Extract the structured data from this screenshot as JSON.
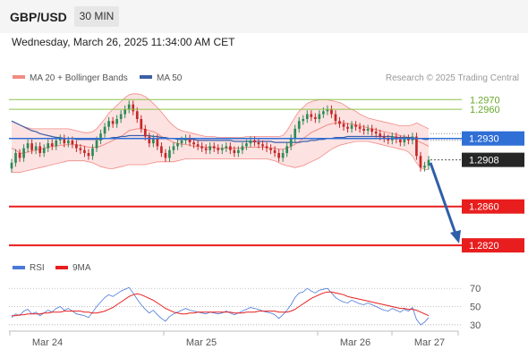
{
  "header": {
    "pair": "GBP/USD",
    "timeframe": "30 MIN",
    "datetime": "Wednesday, March 26, 2025 11:34:00 AM CET"
  },
  "colors": {
    "ma20": "#f28b82",
    "ma50": "#3c5fa8",
    "band_fill": "#fde2e2",
    "bull": "#2e8b57",
    "bear": "#c62828",
    "resistance": "#8bc34a",
    "support": "#e81e1e",
    "pivot": "#2f6fd6",
    "current": "#262626",
    "arrow": "#2f5fa8",
    "rsi": "#4a78d8",
    "rsi_ma": "#e81e1e"
  },
  "chart_data": [
    {
      "type": "line",
      "title": "",
      "legend": [
        {
          "name": "MA 20 + Bollinger Bands",
          "color": "#f28b82"
        },
        {
          "name": "MA 50",
          "color": "#3c5fa8"
        }
      ],
      "legend_position": "top-left",
      "watermark": "Research © 2025 Trading Central",
      "ylim": [
        1.281,
        1.2985
      ],
      "x_ticks": [
        "Mar 24",
        "Mar 25",
        "Mar 26",
        "Mar 27"
      ],
      "price_levels": [
        {
          "value": 1.297,
          "label": "1.2970",
          "kind": "resistance"
        },
        {
          "value": 1.296,
          "label": "1.2960",
          "kind": "resistance"
        },
        {
          "value": 1.293,
          "label": "1.2930",
          "kind": "pivot"
        },
        {
          "value": 1.2908,
          "label": "1.2908",
          "kind": "current"
        },
        {
          "value": 1.286,
          "label": "1.2860",
          "kind": "support"
        },
        {
          "value": 1.282,
          "label": "1.2820",
          "kind": "support"
        }
      ],
      "forecast_arrow": {
        "from": 1.2905,
        "to": 1.2822
      },
      "series": [
        {
          "name": "Close",
          "values": [
            1.2905,
            1.2915,
            1.291,
            1.292,
            1.2925,
            1.2918,
            1.2922,
            1.2915,
            1.292,
            1.2925,
            1.2922,
            1.2928,
            1.293,
            1.2925,
            1.2928,
            1.2924,
            1.292,
            1.2918,
            1.2915,
            1.2912,
            1.292,
            1.2928,
            1.2935,
            1.2942,
            1.2948,
            1.2945,
            1.295,
            1.2955,
            1.296,
            1.2965,
            1.2958,
            1.295,
            1.294,
            1.2932,
            1.2925,
            1.293,
            1.2922,
            1.2915,
            1.291,
            1.2918,
            1.2922,
            1.2925,
            1.2928,
            1.293,
            1.2926,
            1.2924,
            1.2922,
            1.292,
            1.2918,
            1.2922,
            1.292,
            1.2918,
            1.292,
            1.2922,
            1.2918,
            1.2915,
            1.2918,
            1.2922,
            1.2925,
            1.2928,
            1.2926,
            1.2924,
            1.2922,
            1.292,
            1.2918,
            1.2915,
            1.291,
            1.2915,
            1.2922,
            1.293,
            1.294,
            1.2948,
            1.295,
            1.2955,
            1.2952,
            1.295,
            1.2955,
            1.2958,
            1.296,
            1.2955,
            1.2948,
            1.2945,
            1.2942,
            1.294,
            1.2944,
            1.2942,
            1.294,
            1.2938,
            1.294,
            1.2937,
            1.2935,
            1.2932,
            1.293,
            1.2928,
            1.2932,
            1.2929,
            1.2926,
            1.293,
            1.2928,
            1.2932,
            1.2912,
            1.29,
            1.2902,
            1.2908
          ]
        },
        {
          "name": "MA 20",
          "values": [
            1.292,
            1.2918,
            1.2915,
            1.2915,
            1.2916,
            1.2917,
            1.2918,
            1.2919,
            1.292,
            1.2921,
            1.2922,
            1.2922,
            1.2923,
            1.2923,
            1.2924,
            1.2924,
            1.2923,
            1.2923,
            1.2922,
            1.2921,
            1.2921,
            1.2921,
            1.2922,
            1.2924,
            1.2926,
            1.2928,
            1.293,
            1.2932,
            1.2935,
            1.2938,
            1.2939,
            1.294,
            1.294,
            1.2939,
            1.2938,
            1.2937,
            1.2935,
            1.2932,
            1.293,
            1.2928,
            1.2926,
            1.2925,
            1.2924,
            1.2924,
            1.2923,
            1.2922,
            1.2922,
            1.2921,
            1.2921,
            1.2921,
            1.2921,
            1.292,
            1.292,
            1.292,
            1.292,
            1.292,
            1.292,
            1.292,
            1.2921,
            1.2921,
            1.2921,
            1.2921,
            1.2921,
            1.2921,
            1.292,
            1.292,
            1.2919,
            1.2919,
            1.292,
            1.2922,
            1.2924,
            1.2927,
            1.293,
            1.2933,
            1.2936,
            1.2938,
            1.294,
            1.2942,
            1.2944,
            1.2945,
            1.2946,
            1.2946,
            1.2946,
            1.2945,
            1.2945,
            1.2944,
            1.2943,
            1.2942,
            1.2941,
            1.294,
            1.2939,
            1.2938,
            1.2937,
            1.2936,
            1.2935,
            1.2934,
            1.2933,
            1.2932,
            1.2931,
            1.293,
            1.2928,
            1.2926,
            1.2924,
            1.2922
          ]
        },
        {
          "name": "Bollinger Upper",
          "values": [
            1.2948,
            1.2946,
            1.2944,
            1.2942,
            1.2941,
            1.294,
            1.294,
            1.294,
            1.294,
            1.294,
            1.294,
            1.294,
            1.294,
            1.294,
            1.294,
            1.2939,
            1.2938,
            1.2937,
            1.2936,
            1.2936,
            1.2937,
            1.294,
            1.2945,
            1.295,
            1.2956,
            1.296,
            1.2964,
            1.2968,
            1.2972,
            1.2975,
            1.2976,
            1.2976,
            1.2975,
            1.2973,
            1.297,
            1.2966,
            1.2962,
            1.2957,
            1.2952,
            1.2947,
            1.2943,
            1.294,
            1.2938,
            1.2937,
            1.2936,
            1.2935,
            1.2934,
            1.2933,
            1.2932,
            1.2932,
            1.2932,
            1.2931,
            1.2931,
            1.2931,
            1.2931,
            1.2931,
            1.2931,
            1.2931,
            1.2932,
            1.2932,
            1.2932,
            1.2932,
            1.2932,
            1.2932,
            1.2932,
            1.2932,
            1.2932,
            1.2933,
            1.2938,
            1.2945,
            1.2952,
            1.2958,
            1.2962,
            1.2966,
            1.2968,
            1.2969,
            1.297,
            1.297,
            1.297,
            1.2969,
            1.2968,
            1.2967,
            1.2965,
            1.2962,
            1.296,
            1.2958,
            1.2955,
            1.2953,
            1.2951,
            1.295,
            1.2949,
            1.2948,
            1.2947,
            1.2946,
            1.2945,
            1.2944,
            1.2943,
            1.2943,
            1.2943,
            1.2944,
            1.2946,
            1.2944,
            1.2942,
            1.294
          ]
        },
        {
          "name": "Bollinger Lower",
          "values": [
            1.2895,
            1.2895,
            1.2895,
            1.2896,
            1.2897,
            1.2898,
            1.2899,
            1.29,
            1.2901,
            1.2902,
            1.2903,
            1.2904,
            1.2905,
            1.2906,
            1.2907,
            1.2907,
            1.2907,
            1.2907,
            1.2907,
            1.2906,
            1.2905,
            1.2903,
            1.2901,
            1.29,
            1.2899,
            1.2899,
            1.29,
            1.2901,
            1.2902,
            1.2903,
            1.2903,
            1.2903,
            1.2903,
            1.2903,
            1.2904,
            1.2905,
            1.2906,
            1.2906,
            1.2906,
            1.2906,
            1.2906,
            1.2907,
            1.2908,
            1.2909,
            1.2909,
            1.2909,
            1.2909,
            1.2909,
            1.2909,
            1.2909,
            1.2909,
            1.2909,
            1.2909,
            1.2909,
            1.2909,
            1.2909,
            1.2909,
            1.2909,
            1.2909,
            1.2909,
            1.2909,
            1.2909,
            1.2909,
            1.2909,
            1.2908,
            1.2907,
            1.2905,
            1.2903,
            1.2902,
            1.2901,
            1.29,
            1.2901,
            1.2902,
            1.2904,
            1.2906,
            1.2908,
            1.291,
            1.2913,
            1.2916,
            1.2919,
            1.2921,
            1.2923,
            1.2924,
            1.2925,
            1.2926,
            1.2927,
            1.2927,
            1.2927,
            1.2927,
            1.2926,
            1.2925,
            1.2924,
            1.2923,
            1.2922,
            1.2921,
            1.292,
            1.2919,
            1.2918,
            1.2916,
            1.2912,
            1.2905,
            1.29,
            1.2898,
            1.2898
          ]
        },
        {
          "name": "MA 50",
          "values": [
            1.2948,
            1.2946,
            1.2944,
            1.2942,
            1.294,
            1.2938,
            1.2937,
            1.2935,
            1.2934,
            1.2933,
            1.2932,
            1.2931,
            1.2931,
            1.293,
            1.293,
            1.293,
            1.2929,
            1.2929,
            1.2929,
            1.2929,
            1.2929,
            1.2929,
            1.2929,
            1.293,
            1.293,
            1.2931,
            1.2931,
            1.2932,
            1.2932,
            1.2933,
            1.2933,
            1.2933,
            1.2933,
            1.2933,
            1.2933,
            1.2932,
            1.2932,
            1.2931,
            1.2931,
            1.293,
            1.293,
            1.2929,
            1.2929,
            1.2929,
            1.2929,
            1.2929,
            1.2928,
            1.2928,
            1.2928,
            1.2928,
            1.2928,
            1.2928,
            1.2928,
            1.2928,
            1.2928,
            1.2927,
            1.2927,
            1.2927,
            1.2927,
            1.2927,
            1.2927,
            1.2927,
            1.2927,
            1.2927,
            1.2927,
            1.2926,
            1.2926,
            1.2926,
            1.2926,
            1.2926,
            1.2926,
            1.2926,
            1.2927,
            1.2927,
            1.2928,
            1.2928,
            1.2929,
            1.2929,
            1.293,
            1.293,
            1.2931,
            1.2931,
            1.2931,
            1.2932,
            1.2932,
            1.2932,
            1.2932,
            1.2932,
            1.2932,
            1.2932,
            1.2932,
            1.2932,
            1.2932,
            1.2932,
            1.2932,
            1.2931,
            1.2931,
            1.2931,
            1.2931,
            1.2931,
            1.293,
            1.293,
            1.2929,
            1.2929
          ]
        }
      ]
    },
    {
      "type": "line",
      "title": "",
      "legend": [
        {
          "name": "RSI",
          "color": "#4a78d8"
        },
        {
          "name": "9MA",
          "color": "#e81e1e"
        }
      ],
      "legend_position": "top-left",
      "ylim": [
        25,
        80
      ],
      "y_ticks": [
        30,
        50,
        70
      ],
      "x_ticks": [
        "Mar 24",
        "Mar 25",
        "Mar 26",
        "Mar 27"
      ],
      "series": [
        {
          "name": "RSI",
          "values": [
            38,
            42,
            40,
            45,
            47,
            42,
            44,
            40,
            43,
            46,
            44,
            48,
            50,
            46,
            48,
            45,
            42,
            41,
            40,
            38,
            44,
            50,
            55,
            60,
            63,
            61,
            64,
            67,
            69,
            71,
            65,
            58,
            52,
            47,
            43,
            46,
            41,
            37,
            34,
            39,
            42,
            44,
            46,
            48,
            46,
            45,
            44,
            43,
            42,
            44,
            43,
            42,
            43,
            45,
            43,
            41,
            43,
            45,
            47,
            49,
            48,
            47,
            45,
            44,
            43,
            41,
            37,
            41,
            46,
            52,
            60,
            65,
            66,
            70,
            67,
            65,
            68,
            69,
            70,
            65,
            60,
            57,
            55,
            54,
            57,
            55,
            53,
            52,
            54,
            52,
            50,
            48,
            46,
            45,
            48,
            46,
            44,
            47,
            45,
            49,
            36,
            30,
            33,
            38
          ]
        },
        {
          "name": "9MA",
          "values": [
            40,
            40,
            41,
            41,
            42,
            42,
            42,
            42,
            43,
            43,
            44,
            44,
            44,
            45,
            45,
            45,
            45,
            45,
            44,
            44,
            43,
            43,
            44,
            45,
            47,
            49,
            52,
            55,
            58,
            61,
            63,
            64,
            63,
            61,
            59,
            57,
            54,
            51,
            48,
            46,
            44,
            43,
            42,
            42,
            43,
            43,
            44,
            44,
            44,
            44,
            44,
            44,
            44,
            44,
            44,
            43,
            43,
            43,
            44,
            44,
            44,
            45,
            45,
            45,
            45,
            45,
            44,
            44,
            44,
            45,
            47,
            50,
            53,
            56,
            59,
            61,
            63,
            65,
            66,
            66,
            65,
            64,
            63,
            61,
            60,
            59,
            58,
            57,
            56,
            55,
            54,
            53,
            52,
            51,
            50,
            49,
            48,
            48,
            47,
            47,
            46,
            44,
            42,
            40
          ]
        }
      ]
    }
  ]
}
